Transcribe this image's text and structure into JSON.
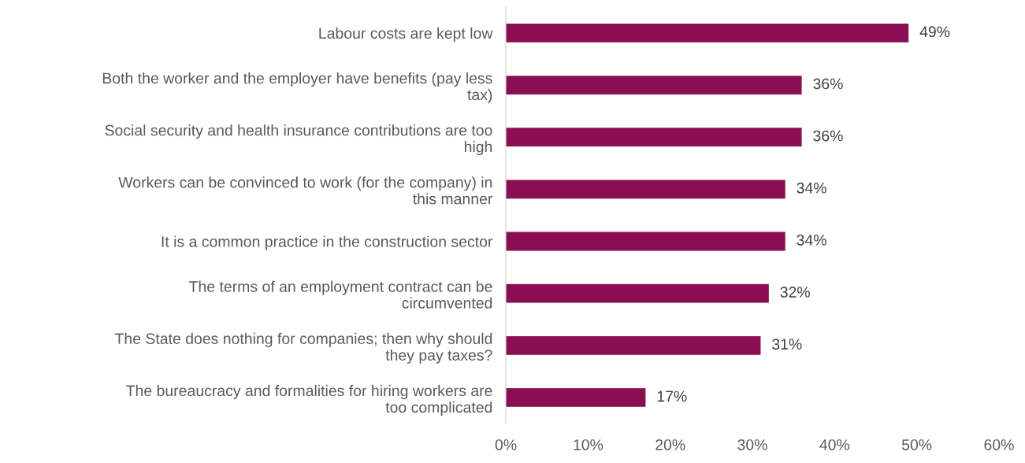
{
  "chart_data": {
    "type": "bar",
    "orientation": "horizontal",
    "categories": [
      "Labour costs are kept low",
      "Both the worker and the employer have benefits (pay less\ntax)",
      "Social security and health insurance contributions are too\nhigh",
      "Workers can be convinced to work (for the company) in\nthis manner",
      "It is a common practice in the construction sector",
      "The terms of an employment contract can be\ncircumvented",
      "The State does nothing for companies; then why should\nthey pay taxes?",
      "The bureaucracy and formalities for hiring workers are\ntoo complicated"
    ],
    "values": [
      49,
      36,
      36,
      34,
      34,
      32,
      31,
      17
    ],
    "value_labels": [
      "49%",
      "36%",
      "36%",
      "34%",
      "34%",
      "32%",
      "31%",
      "17%"
    ],
    "color": "#8b0e52",
    "xlim": [
      0,
      60
    ],
    "xticks": [
      {
        "value": 0,
        "label": "0%"
      },
      {
        "value": 10,
        "label": "10%"
      },
      {
        "value": 20,
        "label": "20%"
      },
      {
        "value": 30,
        "label": "30%"
      },
      {
        "value": 40,
        "label": "40%"
      },
      {
        "value": 50,
        "label": "50%"
      },
      {
        "value": 60,
        "label": "60%"
      }
    ],
    "grid": false
  }
}
